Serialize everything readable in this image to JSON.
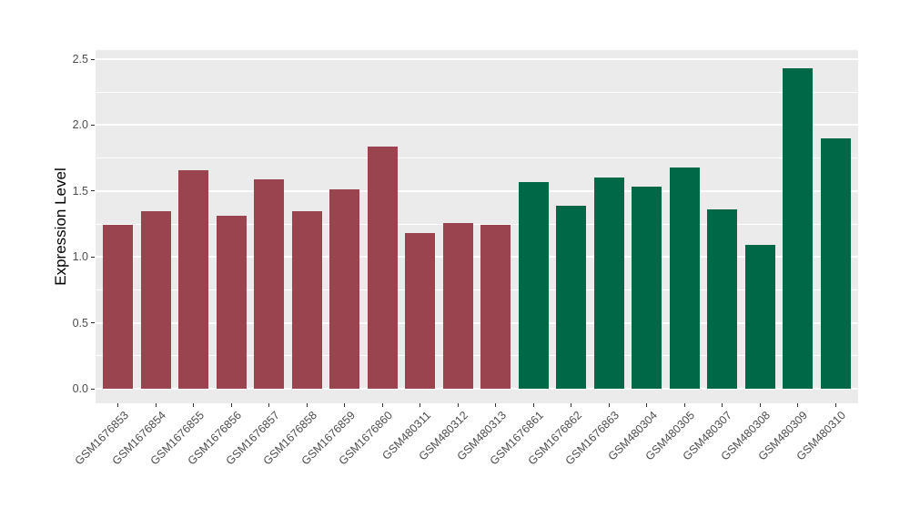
{
  "figure": {
    "background": "#FFFFFF"
  },
  "chart_data": {
    "type": "bar",
    "title": "",
    "xlabel": "",
    "ylabel": "Expression Level",
    "ylim": [
      0,
      2.5
    ],
    "yticks": [
      0.0,
      0.5,
      1.0,
      1.5,
      2.0,
      2.5
    ],
    "ytick_labels": [
      "0.0",
      "0.5",
      "1.0",
      "1.5",
      "2.0",
      "2.5"
    ],
    "minor_gridlines": [
      0.25,
      0.75,
      1.25,
      1.75,
      2.25
    ],
    "grid": "on",
    "legend": "none",
    "style": {
      "panel_background": "#EBEBEB",
      "gridline_color": "#FFFFFF",
      "axis_text_color": "#4D4D4D",
      "axis_title_color": "#000000",
      "tick_color": "#333333"
    },
    "group_colors": {
      "group1": "#9A4450",
      "group2": "#006747"
    },
    "categories": [
      "GSM1676853",
      "GSM1676854",
      "GSM1676855",
      "GSM1676856",
      "GSM1676857",
      "GSM1676858",
      "GSM1676859",
      "GSM1676860",
      "GSM480311",
      "GSM480312",
      "GSM480313",
      "GSM1676861",
      "GSM1676862",
      "GSM1676863",
      "GSM480304",
      "GSM480305",
      "GSM480307",
      "GSM480308",
      "GSM480309",
      "GSM480310"
    ],
    "values": [
      1.24,
      1.35,
      1.66,
      1.31,
      1.59,
      1.35,
      1.51,
      1.84,
      1.18,
      1.26,
      1.24,
      1.57,
      1.39,
      1.6,
      1.53,
      1.68,
      1.36,
      1.09,
      2.43,
      1.9
    ],
    "bar_colors": [
      "#9A4450",
      "#9A4450",
      "#9A4450",
      "#9A4450",
      "#9A4450",
      "#9A4450",
      "#9A4450",
      "#9A4450",
      "#9A4450",
      "#9A4450",
      "#9A4450",
      "#006747",
      "#006747",
      "#006747",
      "#006747",
      "#006747",
      "#006747",
      "#006747",
      "#006747",
      "#006747"
    ]
  }
}
